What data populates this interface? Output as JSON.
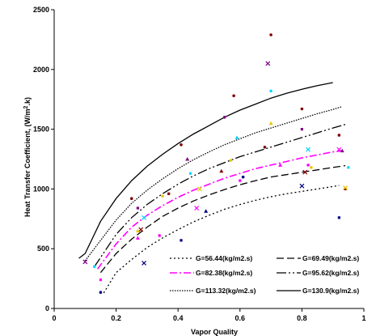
{
  "chart_data": {
    "type": "scatter",
    "title": "",
    "xlabel": "Vapor Quality",
    "ylabel_main": "Heat Transfer Coefficient, (W/m",
    "ylabel_sup": "2",
    "ylabel_end": ".k)",
    "xlim": [
      0,
      1
    ],
    "ylim": [
      0,
      2500
    ],
    "xticks": [
      "0",
      "0.2",
      "0.4",
      "0.6",
      "0.8",
      "1"
    ],
    "yticks": [
      "0",
      "500",
      "1000",
      "1500",
      "2000",
      "2500"
    ],
    "grid": false,
    "legend_position": "bottom-right",
    "series": [
      {
        "name": "G=56.44(kg/m2.s)",
        "color": "#000000",
        "dash": "2,3",
        "marker_color": "#000080",
        "curve": [
          [
            0.16,
            130
          ],
          [
            0.2,
            300
          ],
          [
            0.25,
            410
          ],
          [
            0.3,
            510
          ],
          [
            0.35,
            590
          ],
          [
            0.4,
            660
          ],
          [
            0.45,
            725
          ],
          [
            0.5,
            780
          ],
          [
            0.55,
            830
          ],
          [
            0.6,
            870
          ],
          [
            0.65,
            905
          ],
          [
            0.7,
            935
          ],
          [
            0.75,
            960
          ],
          [
            0.8,
            980
          ],
          [
            0.85,
            1000
          ],
          [
            0.9,
            1020
          ],
          [
            0.92,
            1030
          ]
        ],
        "points": [
          [
            0.15,
            135
          ],
          [
            0.29,
            380
          ],
          [
            0.41,
            570
          ],
          [
            0.49,
            815
          ],
          [
            0.61,
            1100
          ],
          [
            0.8,
            1025
          ],
          [
            0.92,
            760
          ]
        ]
      },
      {
        "name": "G=69.49(kg/m2.s)",
        "color": "#000000",
        "dash": "9,4",
        "marker_color": "#800000",
        "curve": [
          [
            0.15,
            300
          ],
          [
            0.2,
            460
          ],
          [
            0.25,
            580
          ],
          [
            0.3,
            680
          ],
          [
            0.35,
            770
          ],
          [
            0.4,
            840
          ],
          [
            0.45,
            900
          ],
          [
            0.5,
            950
          ],
          [
            0.55,
            995
          ],
          [
            0.6,
            1035
          ],
          [
            0.65,
            1070
          ],
          [
            0.7,
            1100
          ],
          [
            0.75,
            1120
          ],
          [
            0.8,
            1140
          ],
          [
            0.85,
            1160
          ],
          [
            0.9,
            1180
          ],
          [
            0.94,
            1195
          ]
        ],
        "points": [
          [
            0.28,
            660
          ],
          [
            0.37,
            960
          ],
          [
            0.54,
            1150
          ],
          [
            0.68,
            1350
          ],
          [
            0.81,
            1140
          ],
          [
            0.94,
            1000
          ]
        ]
      },
      {
        "name": "G=82.38(kg/m2.s)",
        "color": "#ff00ff",
        "dash": "9,3,2,3",
        "marker_color": "#ff00ff",
        "curve": [
          [
            0.14,
            330
          ],
          [
            0.2,
            540
          ],
          [
            0.25,
            680
          ],
          [
            0.3,
            780
          ],
          [
            0.35,
            860
          ],
          [
            0.4,
            930
          ],
          [
            0.45,
            990
          ],
          [
            0.5,
            1040
          ],
          [
            0.55,
            1090
          ],
          [
            0.6,
            1130
          ],
          [
            0.65,
            1170
          ],
          [
            0.7,
            1200
          ],
          [
            0.75,
            1230
          ],
          [
            0.8,
            1260
          ],
          [
            0.85,
            1285
          ],
          [
            0.9,
            1310
          ],
          [
            0.93,
            1320
          ]
        ],
        "points": [
          [
            0.15,
            240
          ],
          [
            0.27,
            590
          ],
          [
            0.34,
            610
          ],
          [
            0.46,
            840
          ],
          [
            0.6,
            1070
          ],
          [
            0.73,
            1200
          ],
          [
            0.82,
            1200
          ],
          [
            0.92,
            1330
          ]
        ]
      },
      {
        "name": "G=95.62(kg/m2.s)",
        "color": "#000000",
        "dash": "12,3,2,3,2,3",
        "marker_color": "#e6c800",
        "curve": [
          [
            0.13,
            350
          ],
          [
            0.2,
            620
          ],
          [
            0.25,
            760
          ],
          [
            0.3,
            870
          ],
          [
            0.35,
            960
          ],
          [
            0.4,
            1040
          ],
          [
            0.45,
            1110
          ],
          [
            0.5,
            1170
          ],
          [
            0.55,
            1220
          ],
          [
            0.6,
            1270
          ],
          [
            0.65,
            1310
          ],
          [
            0.7,
            1350
          ],
          [
            0.75,
            1390
          ],
          [
            0.8,
            1430
          ],
          [
            0.85,
            1470
          ],
          [
            0.9,
            1510
          ],
          [
            0.94,
            1540
          ]
        ],
        "points": [
          [
            0.27,
            650
          ],
          [
            0.35,
            940
          ],
          [
            0.47,
            1000
          ],
          [
            0.57,
            1240
          ],
          [
            0.7,
            1550
          ],
          [
            0.83,
            1180
          ],
          [
            0.94,
            1010
          ]
        ]
      },
      {
        "name": "G=113.32(kg/m2.s)",
        "color": "#000000",
        "dash": "1.5,1.5",
        "marker_color": "#00d8ff",
        "curve": [
          [
            0.1,
            400
          ],
          [
            0.15,
            570
          ],
          [
            0.2,
            740
          ],
          [
            0.25,
            880
          ],
          [
            0.3,
            990
          ],
          [
            0.35,
            1085
          ],
          [
            0.4,
            1170
          ],
          [
            0.45,
            1245
          ],
          [
            0.5,
            1310
          ],
          [
            0.55,
            1370
          ],
          [
            0.6,
            1420
          ],
          [
            0.65,
            1470
          ],
          [
            0.7,
            1510
          ],
          [
            0.75,
            1550
          ],
          [
            0.8,
            1590
          ],
          [
            0.85,
            1630
          ],
          [
            0.9,
            1665
          ],
          [
            0.93,
            1690
          ]
        ],
        "points": [
          [
            0.13,
            350
          ],
          [
            0.29,
            760
          ],
          [
            0.44,
            1130
          ],
          [
            0.59,
            1430
          ],
          [
            0.7,
            1820
          ],
          [
            0.82,
            1330
          ],
          [
            0.95,
            1180
          ]
        ]
      },
      {
        "name": "G=130.9(kg/m2.s)",
        "color": "#000000",
        "dash": "",
        "marker_color": "#800080",
        "curve": [
          [
            0.08,
            420
          ],
          [
            0.1,
            460
          ],
          [
            0.15,
            730
          ],
          [
            0.2,
            920
          ],
          [
            0.25,
            1070
          ],
          [
            0.3,
            1190
          ],
          [
            0.35,
            1290
          ],
          [
            0.4,
            1380
          ],
          [
            0.45,
            1460
          ],
          [
            0.5,
            1530
          ],
          [
            0.55,
            1600
          ],
          [
            0.6,
            1660
          ],
          [
            0.65,
            1710
          ],
          [
            0.7,
            1760
          ],
          [
            0.75,
            1800
          ],
          [
            0.8,
            1835
          ],
          [
            0.85,
            1865
          ],
          [
            0.9,
            1890
          ]
        ],
        "points": [
          [
            0.1,
            390
          ],
          [
            0.27,
            840
          ],
          [
            0.43,
            1250
          ],
          [
            0.55,
            1600
          ],
          [
            0.69,
            2050
          ],
          [
            0.8,
            1500
          ],
          [
            0.93,
            1320
          ]
        ]
      }
    ],
    "extra_points": [
      {
        "x": 0.7,
        "y": 2290,
        "color": "#800000"
      },
      {
        "x": 0.58,
        "y": 1780,
        "color": "#800000"
      },
      {
        "x": 0.41,
        "y": 1370,
        "color": "#800000"
      },
      {
        "x": 0.25,
        "y": 920,
        "color": "#800000"
      },
      {
        "x": 0.8,
        "y": 1670,
        "color": "#800000"
      },
      {
        "x": 0.92,
        "y": 1450,
        "color": "#800000"
      }
    ]
  }
}
